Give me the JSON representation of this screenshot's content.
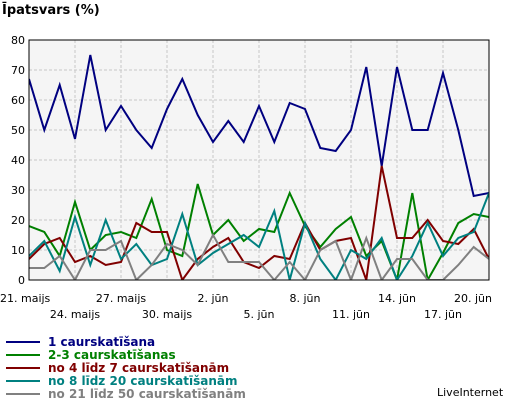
{
  "chart_data": {
    "type": "line",
    "ylabel": "Īpatsvars (%)",
    "ylim": [
      0,
      80
    ],
    "yticks": [
      0,
      10,
      20,
      30,
      40,
      50,
      60,
      70,
      80
    ],
    "x_start": "2012-05-21",
    "x_end": "2012-06-20",
    "grid": true,
    "legend_position": "bottom-left",
    "x_tick_labels_upper": [
      "21. maijs",
      "27. maijs",
      "2. jūn",
      "8. jūn",
      "14. jūn",
      "20. jūn"
    ],
    "x_tick_labels_lower": [
      "24. maijs",
      "30. maijs",
      "5. jūn",
      "11. jūn",
      "17. jūn"
    ],
    "series": [
      {
        "name": "1 caurskatīšana",
        "color": "#000080",
        "values": [
          67,
          50,
          65,
          47,
          75,
          50,
          58,
          50,
          44,
          57,
          67,
          55,
          46,
          53,
          46,
          58,
          46,
          59,
          57,
          44,
          43,
          50,
          71,
          38,
          71,
          50,
          50,
          69,
          50,
          28,
          29
        ]
      },
      {
        "name": "2-3 caurskatīšanas",
        "color": "#008000",
        "values": [
          18,
          16,
          8,
          26,
          10,
          15,
          16,
          14,
          27,
          10,
          8,
          32,
          15,
          20,
          13,
          17,
          16,
          29,
          18,
          11,
          17,
          21,
          8,
          13,
          0,
          29,
          0,
          9,
          19,
          22,
          21
        ]
      },
      {
        "name": "no 4 līdz 7 caurskatīšanām",
        "color": "#800000",
        "values": [
          7,
          12,
          14,
          6,
          8,
          5,
          6,
          19,
          16,
          16,
          0,
          7,
          11,
          14,
          6,
          4,
          8,
          7,
          19,
          10,
          13,
          14,
          0,
          38,
          14,
          14,
          20,
          13,
          12,
          17,
          7
        ]
      },
      {
        "name": "no 8 līdz 20 caurskatīšanām",
        "color": "#008080",
        "values": [
          8,
          13,
          3,
          21,
          5,
          20,
          7,
          12,
          5,
          7,
          22,
          5,
          9,
          12,
          15,
          11,
          23,
          0,
          19,
          7,
          0,
          10,
          7,
          14,
          0,
          8,
          19,
          8,
          14,
          16,
          29
        ]
      },
      {
        "name": "no 21 līdz 50 caurskatīšanām",
        "color": "#808080",
        "values": [
          4,
          4,
          8,
          0,
          10,
          10,
          13,
          0,
          5,
          12,
          10,
          5,
          15,
          6,
          6,
          6,
          0,
          6,
          0,
          10,
          13,
          0,
          14,
          0,
          7,
          7,
          0,
          0,
          5,
          11,
          7
        ]
      }
    ]
  },
  "watermark": "LiveInternet"
}
